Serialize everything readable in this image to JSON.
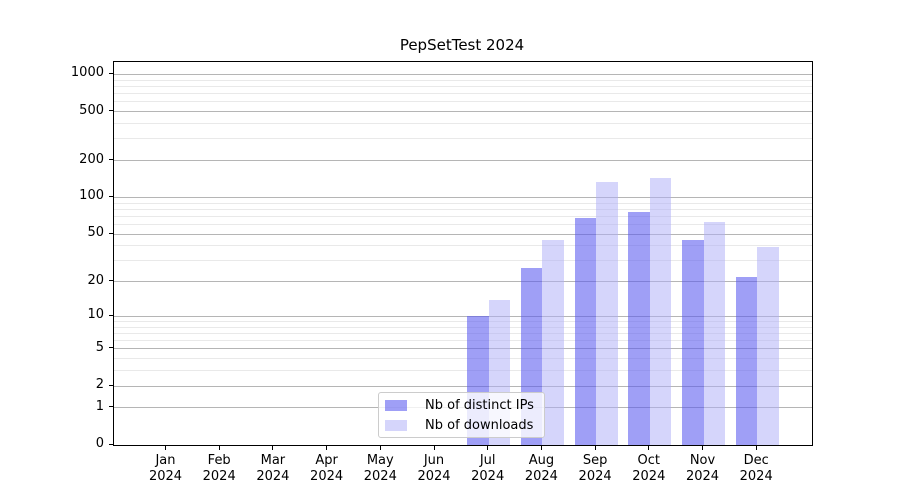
{
  "chart_data": {
    "type": "bar",
    "title": "PepSetTest 2024",
    "categories": [
      "Jan",
      "Feb",
      "Mar",
      "Apr",
      "May",
      "Jun",
      "Jul",
      "Aug",
      "Sep",
      "Oct",
      "Nov",
      "Dec"
    ],
    "year_label": "2024",
    "series": [
      {
        "name": "Nb of distinct IPs",
        "color": "#9f9ff5",
        "fill": "rgba(87,87,240,0.57)",
        "values": [
          0,
          0,
          0,
          0,
          0,
          0,
          10,
          26,
          68,
          76,
          45,
          22
        ]
      },
      {
        "name": "Nb of downloads",
        "color": "#d6d6fb",
        "fill": "rgba(174,174,247,0.52)",
        "values": [
          0,
          0,
          0,
          0,
          0,
          0,
          14,
          45,
          134,
          143,
          63,
          39
        ]
      }
    ],
    "xlabel": "",
    "ylabel": "",
    "yscale": "log1p",
    "ylim": [
      0,
      1260
    ],
    "y_ticks": [
      0,
      1,
      2,
      5,
      10,
      20,
      50,
      100,
      200,
      500,
      1000
    ],
    "y_minor_ticks": [
      3,
      4,
      6,
      7,
      8,
      9,
      30,
      40,
      60,
      70,
      80,
      90,
      300,
      400,
      600,
      700,
      800,
      900
    ],
    "grid": true,
    "grid_major_color": "#b5b5b5",
    "grid_minor_color": "#e9e9e9",
    "axis_color": "#000000",
    "legend_position": "inside-bottom-center"
  }
}
